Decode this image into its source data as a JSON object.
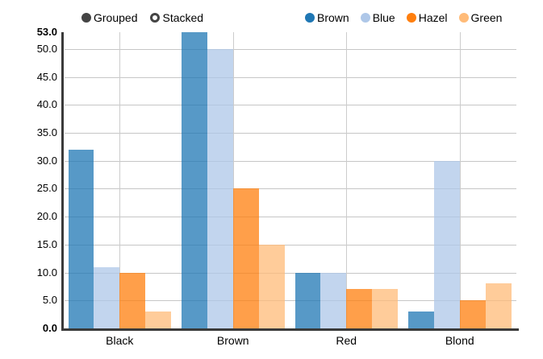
{
  "controls": {
    "items": [
      {
        "label": "Grouped",
        "selected": true
      },
      {
        "label": "Stacked",
        "selected": false
      }
    ],
    "active_color": "#444444"
  },
  "legend": {
    "items": [
      {
        "label": "Brown",
        "color": "#1f77b4"
      },
      {
        "label": "Blue",
        "color": "#aec7e8"
      },
      {
        "label": "Hazel",
        "color": "#ff7f0e"
      },
      {
        "label": "Green",
        "color": "#ffbb78"
      }
    ]
  },
  "chart_data": {
    "type": "bar",
    "mode": "grouped",
    "title": "",
    "xlabel": "",
    "ylabel": "",
    "categories": [
      "Black",
      "Brown",
      "Red",
      "Blond"
    ],
    "series": [
      {
        "name": "Brown",
        "color": "#1f77b4",
        "values": [
          32,
          53,
          10,
          3
        ]
      },
      {
        "name": "Blue",
        "color": "#aec7e8",
        "values": [
          11,
          50,
          10,
          30
        ]
      },
      {
        "name": "Hazel",
        "color": "#ff7f0e",
        "values": [
          10,
          25,
          7,
          5
        ]
      },
      {
        "name": "Green",
        "color": "#ffbb78",
        "values": [
          3,
          15,
          7,
          8
        ]
      }
    ],
    "ylim": [
      0,
      53
    ],
    "y_ticks": [
      0,
      5,
      10,
      15,
      20,
      25,
      30,
      35,
      40,
      45,
      50,
      53
    ],
    "y_tick_labels": [
      "0.0",
      "5.0",
      "10.0",
      "15.0",
      "20.0",
      "25.0",
      "30.0",
      "35.0",
      "40.0",
      "45.0",
      "50.0",
      "53.0"
    ],
    "grid": true,
    "bar_opacity": 0.75,
    "legend_position": "top-right",
    "controls_position": "top-left",
    "axis_color": "#3a3a3a",
    "grid_color": "#c6c6c6"
  }
}
